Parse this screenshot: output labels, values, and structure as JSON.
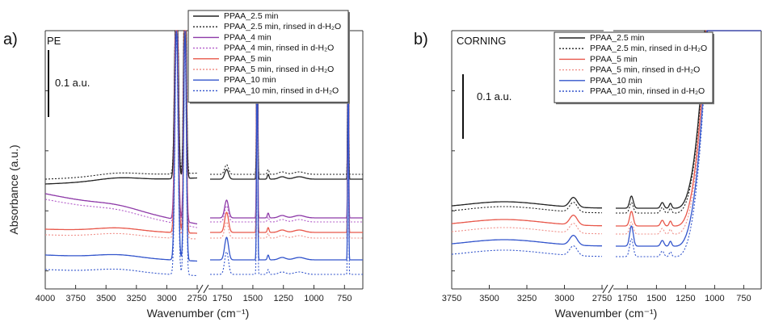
{
  "chart_data": [
    {
      "type": "line",
      "panel_label": "a)",
      "sample": "PE",
      "xlabel": "Wavenumber (cm⁻¹)",
      "ylabel": "Absorbance (a.u.)",
      "xlim": [
        4000,
        600
      ],
      "axis_break": [
        1800,
        1850
      ],
      "x_ticks": [
        "4000",
        "3750",
        "3500",
        "3250",
        "3000",
        "2750",
        "1750",
        "1500",
        "1250",
        "1000",
        "750"
      ],
      "scale_bar": "0.1 a.u.",
      "legend": [
        {
          "label": "PPAA_2.5 min",
          "color": "#222222",
          "style": "solid"
        },
        {
          "label": "PPAA_2.5 min, rinsed in d-H₂O",
          "color": "#222222",
          "style": "dotted"
        },
        {
          "label": "PPAA_4 min",
          "color": "#8e3aa8",
          "style": "solid"
        },
        {
          "label": "PPAA_4 min, rinsed in d-H₂O",
          "color": "#b35cc9",
          "style": "dotted"
        },
        {
          "label": "PPAA_5 min",
          "color": "#e8574a",
          "style": "solid"
        },
        {
          "label": "PPAA_5 min, rinsed in d-H₂O",
          "color": "#f0908a",
          "style": "dotted"
        },
        {
          "label": "PPAA_10 min",
          "color": "#3355cc",
          "style": "solid"
        },
        {
          "label": "PPAA_10 min, rinsed in d-H₂O",
          "color": "#3355cc",
          "style": "dotted"
        }
      ]
    },
    {
      "type": "line",
      "panel_label": "b)",
      "sample": "CORNING",
      "xlabel": "Wavenumber (cm⁻¹)",
      "ylabel": "",
      "xlim": [
        3750,
        600
      ],
      "axis_break": [
        1800,
        1850
      ],
      "x_ticks": [
        "3750",
        "3500",
        "3250",
        "3000",
        "2750",
        "1750",
        "1500",
        "1250",
        "1000",
        "750"
      ],
      "scale_bar": "0.1 a.u.",
      "legend": [
        {
          "label": "PPAA_2.5 min",
          "color": "#222222",
          "style": "solid"
        },
        {
          "label": "PPAA_2.5 min, rinsed in d-H₂O",
          "color": "#222222",
          "style": "dotted"
        },
        {
          "label": "PPAA_5 min",
          "color": "#e8574a",
          "style": "solid"
        },
        {
          "label": "PPAA_5 min, rinsed in d-H₂O",
          "color": "#f0908a",
          "style": "dotted"
        },
        {
          "label": "PPAA_10 min",
          "color": "#3355cc",
          "style": "solid"
        },
        {
          "label": "PPAA_10 min, rinsed in d-H₂O",
          "color": "#3355cc",
          "style": "dotted"
        }
      ]
    }
  ]
}
